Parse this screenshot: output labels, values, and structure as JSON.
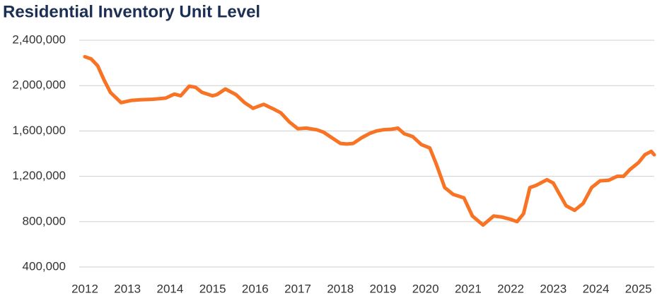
{
  "chart_data": {
    "type": "line",
    "title": "Residential Inventory Unit Level",
    "x": [
      2012.0,
      2012.15,
      2012.3,
      2012.45,
      2012.6,
      2012.85,
      2013.1,
      2013.3,
      2013.6,
      2013.9,
      2014.1,
      2014.25,
      2014.45,
      2014.6,
      2014.75,
      2015.0,
      2015.1,
      2015.3,
      2015.55,
      2015.75,
      2015.95,
      2016.2,
      2016.45,
      2016.6,
      2016.8,
      2017.0,
      2017.2,
      2017.45,
      2017.6,
      2017.8,
      2018.0,
      2018.15,
      2018.3,
      2018.5,
      2018.7,
      2018.85,
      2019.0,
      2019.2,
      2019.35,
      2019.5,
      2019.7,
      2019.9,
      2020.1,
      2020.25,
      2020.45,
      2020.65,
      2020.9,
      2021.1,
      2021.35,
      2021.6,
      2021.8,
      2022.0,
      2022.15,
      2022.3,
      2022.45,
      2022.6,
      2022.85,
      2023.0,
      2023.15,
      2023.3,
      2023.5,
      2023.7,
      2023.9,
      2024.1,
      2024.3,
      2024.5,
      2024.65,
      2024.8,
      2025.0,
      2025.15,
      2025.3,
      2025.37
    ],
    "series": [
      {
        "name": "Residential Inventory",
        "color": "#f97325",
        "values": [
          2255000,
          2235000,
          2175000,
          2050000,
          1940000,
          1850000,
          1870000,
          1875000,
          1880000,
          1890000,
          1925000,
          1910000,
          1995000,
          1985000,
          1940000,
          1910000,
          1920000,
          1970000,
          1920000,
          1850000,
          1800000,
          1835000,
          1790000,
          1760000,
          1680000,
          1620000,
          1625000,
          1610000,
          1590000,
          1540000,
          1490000,
          1485000,
          1490000,
          1540000,
          1580000,
          1600000,
          1610000,
          1615000,
          1625000,
          1575000,
          1550000,
          1480000,
          1450000,
          1310000,
          1100000,
          1040000,
          1010000,
          850000,
          770000,
          850000,
          840000,
          820000,
          800000,
          870000,
          1100000,
          1120000,
          1170000,
          1140000,
          1040000,
          940000,
          900000,
          960000,
          1100000,
          1160000,
          1165000,
          1200000,
          1200000,
          1260000,
          1320000,
          1390000,
          1420000,
          1390000
        ]
      }
    ],
    "xlim": [
      2012,
      2025.37
    ],
    "xticks": [
      2012,
      2013,
      2014,
      2015,
      2016,
      2017,
      2018,
      2019,
      2020,
      2021,
      2022,
      2023,
      2024,
      2025
    ],
    "ylim": [
      400000,
      2400000
    ],
    "yticks": [
      {
        "value": 400000,
        "label": "400,000"
      },
      {
        "value": 800000,
        "label": "800,000"
      },
      {
        "value": 1200000,
        "label": "1,200,000"
      },
      {
        "value": 1600000,
        "label": "1,600,000"
      },
      {
        "value": 2000000,
        "label": "2,000,000"
      },
      {
        "value": 2400000,
        "label": "2,400,000"
      }
    ],
    "grid": true
  }
}
